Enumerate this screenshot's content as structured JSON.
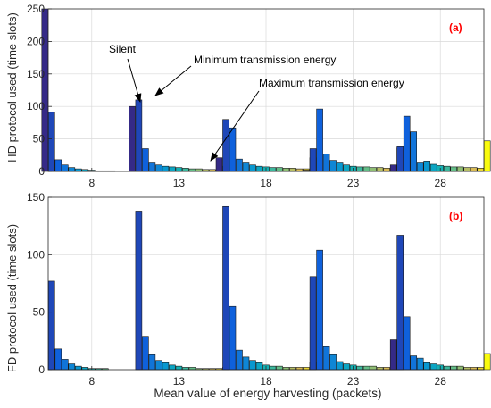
{
  "figure": {
    "xlabel": "Mean value of energy harvesting (packets)"
  },
  "chart_data": [
    {
      "type": "bar",
      "panel_label": "(a)",
      "ylabel": "HD protocol used (time slots)",
      "ylim": [
        0,
        250
      ],
      "yticks": [
        0,
        50,
        100,
        150,
        200,
        250
      ],
      "categories": [
        "8",
        "13",
        "18",
        "23",
        "28"
      ],
      "grid": true,
      "bars_per_group": 15,
      "groups": [
        {
          "category": "8",
          "values": [
            250,
            91,
            18,
            10,
            6,
            4,
            3,
            2,
            1,
            1,
            1,
            0,
            0,
            0,
            0
          ]
        },
        {
          "category": "13",
          "values": [
            100,
            110,
            35,
            13,
            10,
            8,
            7,
            6,
            5,
            4,
            4,
            3,
            3,
            2,
            8
          ]
        },
        {
          "category": "18",
          "values": [
            21,
            80,
            67,
            19,
            13,
            10,
            8,
            7,
            6,
            6,
            5,
            5,
            4,
            4,
            21
          ]
        },
        {
          "category": "23",
          "values": [
            2,
            35,
            96,
            27,
            17,
            13,
            10,
            8,
            7,
            7,
            6,
            6,
            5,
            5,
            36
          ]
        },
        {
          "category": "28",
          "values": [
            10,
            38,
            85,
            61,
            13,
            16,
            11,
            9,
            8,
            7,
            7,
            6,
            6,
            5,
            47
          ]
        }
      ],
      "annotations": [
        {
          "text": "Silent"
        },
        {
          "text": "Minimum transmission energy"
        },
        {
          "text": "Maximum transmission energy"
        }
      ]
    },
    {
      "type": "bar",
      "panel_label": "(b)",
      "ylabel": "FD protocol used (time slots)",
      "ylim": [
        0,
        150
      ],
      "yticks": [
        0,
        50,
        100,
        150
      ],
      "categories": [
        "8",
        "13",
        "18",
        "23",
        "28"
      ],
      "grid": true,
      "bars_per_group": 15,
      "groups": [
        {
          "category": "8",
          "values": [
            0,
            77,
            18,
            9,
            5,
            3,
            2,
            1,
            1,
            1,
            0,
            0,
            0,
            0,
            0
          ]
        },
        {
          "category": "13",
          "values": [
            0,
            138,
            29,
            13,
            8,
            6,
            4,
            3,
            2,
            2,
            1,
            1,
            1,
            1,
            2
          ]
        },
        {
          "category": "18",
          "values": [
            0,
            142,
            55,
            17,
            11,
            8,
            6,
            4,
            3,
            3,
            2,
            2,
            2,
            2,
            6
          ]
        },
        {
          "category": "23",
          "values": [
            0,
            81,
            104,
            20,
            13,
            7,
            5,
            4,
            3,
            3,
            3,
            2,
            2,
            2,
            10
          ]
        },
        {
          "category": "28",
          "values": [
            26,
            117,
            46,
            12,
            10,
            6,
            5,
            4,
            3,
            3,
            3,
            2,
            2,
            2,
            14
          ]
        }
      ]
    }
  ]
}
